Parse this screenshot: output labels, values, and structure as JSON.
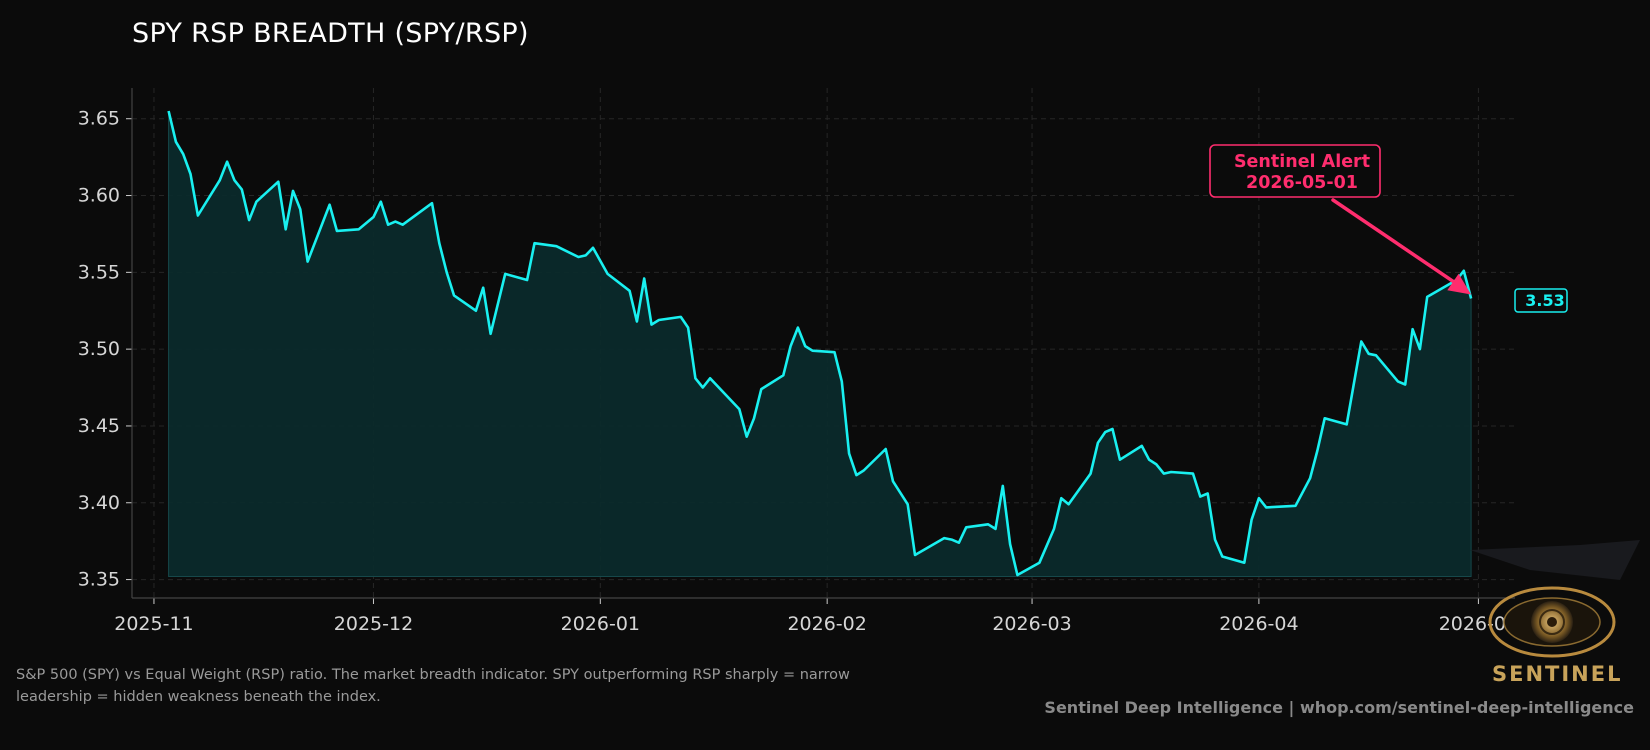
{
  "chart_data": {
    "type": "area",
    "title": "SPY RSP BREADTH (SPY/RSP)",
    "xlabel": "",
    "ylabel": "",
    "ylim": [
      3.338,
      3.67
    ],
    "xlim": [
      "2025-10-29",
      "2026-05-06"
    ],
    "x_ticks": [
      "2025-11",
      "2025-12",
      "2026-01",
      "2026-02",
      "2026-03",
      "2026-04",
      "2026-05"
    ],
    "y_ticks": [
      3.35,
      3.4,
      3.45,
      3.5,
      3.55,
      3.6,
      3.65
    ],
    "y_tick_labels": [
      "3.35",
      "3.40",
      "3.45",
      "3.50",
      "3.55",
      "3.60",
      "3.65"
    ],
    "grid": true,
    "series": [
      {
        "points": [
          [
            "2025-11-03",
            3.655
          ],
          [
            "2025-11-04",
            3.635
          ],
          [
            "2025-11-05",
            3.627
          ],
          [
            "2025-11-06",
            3.614
          ],
          [
            "2025-11-07",
            3.587
          ],
          [
            "2025-11-10",
            3.61
          ],
          [
            "2025-11-11",
            3.622
          ],
          [
            "2025-11-12",
            3.61
          ],
          [
            "2025-11-13",
            3.604
          ],
          [
            "2025-11-14",
            3.584
          ],
          [
            "2025-11-15",
            3.596
          ],
          [
            "2025-11-18",
            3.609
          ],
          [
            "2025-11-19",
            3.578
          ],
          [
            "2025-11-20",
            3.603
          ],
          [
            "2025-11-21",
            3.591
          ],
          [
            "2025-11-22",
            3.557
          ],
          [
            "2025-11-25",
            3.594
          ],
          [
            "2025-11-26",
            3.577
          ],
          [
            "2025-11-29",
            3.578
          ],
          [
            "2025-12-01",
            3.586
          ],
          [
            "2025-12-02",
            3.596
          ],
          [
            "2025-12-03",
            3.581
          ],
          [
            "2025-12-04",
            3.583
          ],
          [
            "2025-12-05",
            3.581
          ],
          [
            "2025-12-09",
            3.595
          ],
          [
            "2025-12-10",
            3.569
          ],
          [
            "2025-12-11",
            3.55
          ],
          [
            "2025-12-12",
            3.535
          ],
          [
            "2025-12-15",
            3.525
          ],
          [
            "2025-12-16",
            3.54
          ],
          [
            "2025-12-17",
            3.51
          ],
          [
            "2025-12-19",
            3.549
          ],
          [
            "2025-12-22",
            3.545
          ],
          [
            "2025-12-23",
            3.569
          ],
          [
            "2025-12-26",
            3.567
          ],
          [
            "2025-12-29",
            3.56
          ],
          [
            "2025-12-30",
            3.561
          ],
          [
            "2025-12-31",
            3.566
          ],
          [
            "2026-01-02",
            3.549
          ],
          [
            "2026-01-05",
            3.538
          ],
          [
            "2026-01-06",
            3.518
          ],
          [
            "2026-01-07",
            3.546
          ],
          [
            "2026-01-08",
            3.516
          ],
          [
            "2026-01-09",
            3.519
          ],
          [
            "2026-01-12",
            3.521
          ],
          [
            "2026-01-13",
            3.514
          ],
          [
            "2026-01-14",
            3.481
          ],
          [
            "2026-01-15",
            3.475
          ],
          [
            "2026-01-16",
            3.481
          ],
          [
            "2026-01-20",
            3.461
          ],
          [
            "2026-01-21",
            3.443
          ],
          [
            "2026-01-22",
            3.455
          ],
          [
            "2026-01-23",
            3.474
          ],
          [
            "2026-01-26",
            3.483
          ],
          [
            "2026-01-27",
            3.502
          ],
          [
            "2026-01-28",
            3.514
          ],
          [
            "2026-01-29",
            3.502
          ],
          [
            "2026-01-30",
            3.499
          ],
          [
            "2026-02-02",
            3.498
          ],
          [
            "2026-02-03",
            3.479
          ],
          [
            "2026-02-04",
            3.432
          ],
          [
            "2026-02-05",
            3.418
          ],
          [
            "2026-02-06",
            3.421
          ],
          [
            "2026-02-09",
            3.435
          ],
          [
            "2026-02-10",
            3.414
          ],
          [
            "2026-02-12",
            3.399
          ],
          [
            "2026-02-13",
            3.366
          ],
          [
            "2026-02-17",
            3.377
          ],
          [
            "2026-02-18",
            3.376
          ],
          [
            "2026-02-19",
            3.374
          ],
          [
            "2026-02-20",
            3.384
          ],
          [
            "2026-02-23",
            3.386
          ],
          [
            "2026-02-24",
            3.383
          ],
          [
            "2026-02-25",
            3.411
          ],
          [
            "2026-02-26",
            3.373
          ],
          [
            "2026-02-27",
            3.353
          ],
          [
            "2026-03-02",
            3.361
          ],
          [
            "2026-03-04",
            3.383
          ],
          [
            "2026-03-05",
            3.403
          ],
          [
            "2026-03-06",
            3.399
          ],
          [
            "2026-03-09",
            3.419
          ],
          [
            "2026-03-10",
            3.439
          ],
          [
            "2026-03-11",
            3.446
          ],
          [
            "2026-03-12",
            3.448
          ],
          [
            "2026-03-13",
            3.428
          ],
          [
            "2026-03-16",
            3.437
          ],
          [
            "2026-03-17",
            3.428
          ],
          [
            "2026-03-18",
            3.425
          ],
          [
            "2026-03-19",
            3.419
          ],
          [
            "2026-03-20",
            3.42
          ],
          [
            "2026-03-23",
            3.419
          ],
          [
            "2026-03-24",
            3.404
          ],
          [
            "2026-03-25",
            3.406
          ],
          [
            "2026-03-26",
            3.376
          ],
          [
            "2026-03-27",
            3.365
          ],
          [
            "2026-03-30",
            3.361
          ],
          [
            "2026-03-31",
            3.389
          ],
          [
            "2026-04-01",
            3.403
          ],
          [
            "2026-04-02",
            3.397
          ],
          [
            "2026-04-06",
            3.398
          ],
          [
            "2026-04-08",
            3.416
          ],
          [
            "2026-04-09",
            3.434
          ],
          [
            "2026-04-10",
            3.455
          ],
          [
            "2026-04-13",
            3.451
          ],
          [
            "2026-04-14",
            3.478
          ],
          [
            "2026-04-15",
            3.505
          ],
          [
            "2026-04-16",
            3.497
          ],
          [
            "2026-04-17",
            3.496
          ],
          [
            "2026-04-20",
            3.479
          ],
          [
            "2026-04-21",
            3.477
          ],
          [
            "2026-04-22",
            3.513
          ],
          [
            "2026-04-23",
            3.5
          ],
          [
            "2026-04-24",
            3.534
          ],
          [
            "2026-04-28",
            3.545
          ],
          [
            "2026-04-29",
            3.551
          ],
          [
            "2026-04-30",
            3.533
          ]
        ]
      }
    ],
    "colors": {
      "line": "#19f0f0",
      "fill": "#0b2a2b",
      "alert": "#ff2d6e",
      "grid": "#262626",
      "axis": "#444444"
    },
    "last_value_label": "3.53",
    "annotation": {
      "text_line1": "Sentinel Alert",
      "text_line2": "2026-05-01",
      "target": [
        "2026-04-30",
        3.533
      ]
    }
  },
  "caption": "S&P 500 (SPY) vs Equal Weight (RSP) ratio. The market breadth indicator. SPY outperforming RSP sharply = narrow leadership = hidden weakness beneath the index.",
  "footer": "Sentinel Deep Intelligence  |  whop.com/sentinel-deep-intelligence",
  "logo": {
    "text": "SENTINEL",
    "icon": "eye-icon"
  }
}
